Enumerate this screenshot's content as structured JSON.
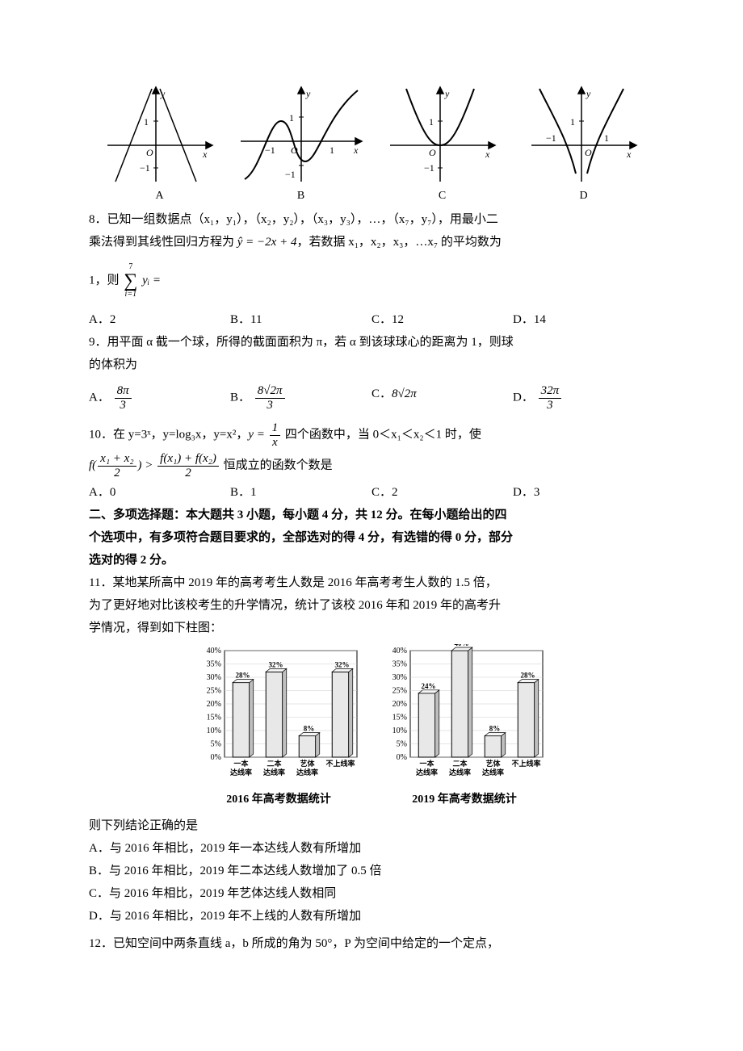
{
  "graphs": {
    "labels": [
      "A",
      "B",
      "C",
      "D"
    ],
    "stroke": "#000000",
    "w": 150,
    "h": 130
  },
  "q8": {
    "text1": "8．已知一组数据点（x₁，y₁），（x₂，y₂），（x₃，y₃），…，（x₇，y₇），用最小二",
    "text2": "乘法得到其线性回归方程为 ",
    "reg": "ŷ = −2x + 4",
    "text3": "，若数据 x₁，x₂，x₃，…x₇ 的平均数为",
    "text4": "1，则 ",
    "sigma_top": "7",
    "sigma_bot": "i=1",
    "sigma_expr": "yᵢ =",
    "opts": {
      "A": "A．2",
      "B": "B．11",
      "C": "C．12",
      "D": "D．14"
    }
  },
  "q9": {
    "text1": "9．用平面 α 截一个球，所得的截面面积为 π，若 α 到该球球心的距离为 1，则球",
    "text2": "的体积为",
    "opts": {
      "A_prefix": "A．",
      "A_num": "8π",
      "A_den": "3",
      "B_prefix": "B．",
      "B_num": "8√2π",
      "B_den": "3",
      "C_prefix": "C．",
      "C_val": "8√2π",
      "D_prefix": "D．",
      "D_num": "32π",
      "D_den": "3"
    }
  },
  "q10": {
    "text1": "10．在 y=3ˣ，y=log₃x，y=x²，",
    "frac1_num": "1",
    "frac1_den": "x",
    "text1b": " 四个函数中，当 0＜x₁＜x₂＜1 时，使",
    "lhs_arg_num": "x₁ + x₂",
    "lhs_arg_den": "2",
    "rhs_num": "f(x₁) + f(x₂)",
    "rhs_den": "2",
    "text2": " 恒成立的函数个数是",
    "opts": {
      "A": "A．0",
      "B": "B．1",
      "C": "C．2",
      "D": "D．3"
    }
  },
  "section2": {
    "line1": "二、多项选择题：本大题共 3 小题，每小题 4 分，共 12 分。在每小题给出的四",
    "line2": "个选项中，有多项符合题目要求的，全部选对的得 4 分，有选错的得 0 分，部分",
    "line3": "选对的得 2 分。"
  },
  "q11": {
    "text1": "11．某地某所高中 2019 年的高考考生人数是 2016 年高考考生人数的 1.5 倍，",
    "text2": "为了更好地对比该校考生的升学情况，统计了该校 2016 年和 2019 年的高考升",
    "text3": "学情况，得到如下柱图：",
    "chart2016": {
      "title": "2016 年高考数据统计",
      "categories": [
        "一本\n达线率",
        "二本\n达线率",
        "艺体\n达线率",
        "不上线率"
      ],
      "values": [
        28,
        32,
        8,
        32
      ],
      "labels": [
        "28%",
        "32%",
        "8%",
        "32%"
      ],
      "ylim": [
        0,
        40
      ],
      "ytick_step": 5,
      "bar_color": "#e8e8e8",
      "border": "#000000",
      "axis_font": 10,
      "label_font": 9
    },
    "chart2019": {
      "title": "2019 年高考数据统计",
      "categories": [
        "一本\n达线率",
        "二本\n达线率",
        "艺体\n达线率",
        "不上线率"
      ],
      "values": [
        24,
        40,
        8,
        28
      ],
      "labels": [
        "24%",
        "40%",
        "8%",
        "28%"
      ],
      "ylim": [
        0,
        40
      ],
      "ytick_step": 5,
      "bar_color": "#e8e8e8",
      "border": "#000000",
      "axis_font": 10,
      "label_font": 9
    },
    "concl": "则下列结论正确的是",
    "opts": {
      "A": "A．与 2016 年相比，2019 年一本达线人数有所增加",
      "B": "B．与 2016 年相比，2019 年二本达线人数增加了 0.5 倍",
      "C": "C．与 2016 年相比，2019 年艺体达线人数相同",
      "D": "D．与 2016 年相比，2019 年不上线的人数有所增加"
    }
  },
  "q12": {
    "text": "12．已知空间中两条直线 a，b 所成的角为 50°，P 为空间中给定的一个定点，"
  }
}
